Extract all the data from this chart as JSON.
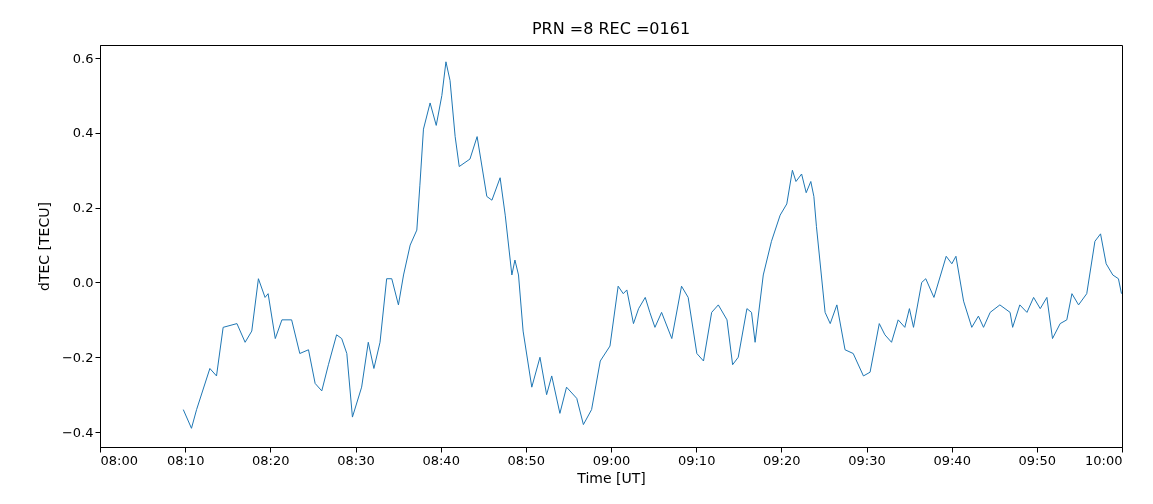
{
  "chart_data": {
    "type": "line",
    "title": "PRN =8 REC =0161",
    "xlabel": "Time [UT]",
    "ylabel": "dTEC [TECU]",
    "xlim": [
      8,
      10
    ],
    "ylim": [
      -0.44,
      0.635
    ],
    "yticks": [
      {
        "value": -0.4,
        "label": "−0.4"
      },
      {
        "value": -0.2,
        "label": "−0.2"
      },
      {
        "value": 0,
        "label": "0.0"
      },
      {
        "value": 0.2,
        "label": "0.2"
      },
      {
        "value": 0.4,
        "label": "0.4"
      },
      {
        "value": 0.6,
        "label": "0.6"
      }
    ],
    "xticks": [
      {
        "value": 8,
        "label": "08:00"
      },
      {
        "value": 8.1667,
        "label": "08:10"
      },
      {
        "value": 8.3333,
        "label": "08:20"
      },
      {
        "value": 8.5,
        "label": "08:30"
      },
      {
        "value": 8.6667,
        "label": "08:40"
      },
      {
        "value": 8.8333,
        "label": "08:50"
      },
      {
        "value": 9,
        "label": "09:00"
      },
      {
        "value": 9.1667,
        "label": "09:10"
      },
      {
        "value": 9.3333,
        "label": "09:20"
      },
      {
        "value": 9.5,
        "label": "09:30"
      },
      {
        "value": 9.6667,
        "label": "09:40"
      },
      {
        "value": 9.8333,
        "label": "09:50"
      },
      {
        "value": 10,
        "label": "10:00"
      }
    ],
    "grid": false,
    "marker": "none",
    "line_style": "solid",
    "x": [
      8.163,
      8.179,
      8.189,
      8.215,
      8.228,
      8.241,
      8.268,
      8.284,
      8.297,
      8.31,
      8.323,
      8.329,
      8.343,
      8.356,
      8.375,
      8.391,
      8.408,
      8.421,
      8.434,
      8.447,
      8.463,
      8.473,
      8.483,
      8.494,
      8.512,
      8.525,
      8.536,
      8.548,
      8.561,
      8.571,
      8.584,
      8.594,
      8.607,
      8.62,
      8.626,
      8.633,
      8.646,
      8.658,
      8.669,
      8.677,
      8.685,
      8.695,
      8.703,
      8.724,
      8.738,
      8.757,
      8.767,
      8.783,
      8.793,
      8.806,
      8.812,
      8.819,
      8.828,
      8.845,
      8.861,
      8.874,
      8.884,
      8.9,
      8.913,
      8.933,
      8.946,
      8.962,
      8.979,
      8.998,
      9.014,
      9.024,
      9.031,
      9.044,
      9.054,
      9.067,
      9.076,
      9.086,
      9.099,
      9.119,
      9.138,
      9.151,
      9.168,
      9.181,
      9.197,
      9.21,
      9.227,
      9.238,
      9.249,
      9.266,
      9.275,
      9.282,
      9.298,
      9.314,
      9.331,
      9.344,
      9.355,
      9.362,
      9.373,
      9.382,
      9.391,
      9.397,
      9.402,
      9.419,
      9.429,
      9.442,
      9.458,
      9.474,
      9.494,
      9.507,
      9.525,
      9.536,
      9.549,
      9.562,
      9.575,
      9.584,
      9.592,
      9.608,
      9.616,
      9.632,
      9.656,
      9.667,
      9.675,
      9.69,
      9.706,
      9.719,
      9.729,
      9.742,
      9.761,
      9.781,
      9.786,
      9.8,
      9.814,
      9.827,
      9.84,
      9.853,
      9.864,
      9.879,
      9.892,
      9.902,
      9.915,
      9.931,
      9.947,
      9.958,
      9.969,
      9.982,
      9.993,
      9.999
    ],
    "series": [
      {
        "color": "#1f77b4",
        "values": [
          -0.34,
          -0.39,
          -0.34,
          -0.23,
          -0.25,
          -0.12,
          -0.11,
          -0.16,
          -0.13,
          0.01,
          -0.04,
          -0.03,
          -0.15,
          -0.1,
          -0.1,
          -0.19,
          -0.18,
          -0.27,
          -0.29,
          -0.22,
          -0.14,
          -0.15,
          -0.19,
          -0.36,
          -0.28,
          -0.16,
          -0.23,
          -0.16,
          0.01,
          0.01,
          -0.06,
          0.02,
          0.1,
          0.14,
          0.26,
          0.41,
          0.48,
          0.42,
          0.5,
          0.59,
          0.54,
          0.39,
          0.31,
          0.33,
          0.39,
          0.23,
          0.22,
          0.28,
          0.18,
          0.02,
          0.06,
          0.02,
          -0.13,
          -0.28,
          -0.2,
          -0.3,
          -0.25,
          -0.35,
          -0.28,
          -0.31,
          -0.38,
          -0.34,
          -0.21,
          -0.17,
          -0.01,
          -0.03,
          -0.02,
          -0.11,
          -0.07,
          -0.04,
          -0.08,
          -0.12,
          -0.08,
          -0.15,
          -0.01,
          -0.04,
          -0.19,
          -0.21,
          -0.08,
          -0.06,
          -0.1,
          -0.22,
          -0.2,
          -0.07,
          -0.08,
          -0.16,
          0.02,
          0.11,
          0.18,
          0.21,
          0.3,
          0.27,
          0.29,
          0.24,
          0.27,
          0.23,
          0.15,
          -0.08,
          -0.11,
          -0.06,
          -0.18,
          -0.19,
          -0.25,
          -0.24,
          -0.11,
          -0.14,
          -0.16,
          -0.1,
          -0.12,
          -0.07,
          -0.12,
          0.0,
          0.01,
          -0.04,
          0.07,
          0.05,
          0.07,
          -0.05,
          -0.12,
          -0.09,
          -0.12,
          -0.08,
          -0.06,
          -0.08,
          -0.12,
          -0.06,
          -0.08,
          -0.04,
          -0.07,
          -0.04,
          -0.15,
          -0.11,
          -0.1,
          -0.03,
          -0.06,
          -0.03,
          0.11,
          0.13,
          0.05,
          0.02,
          0.01,
          -0.03
        ]
      }
    ]
  }
}
